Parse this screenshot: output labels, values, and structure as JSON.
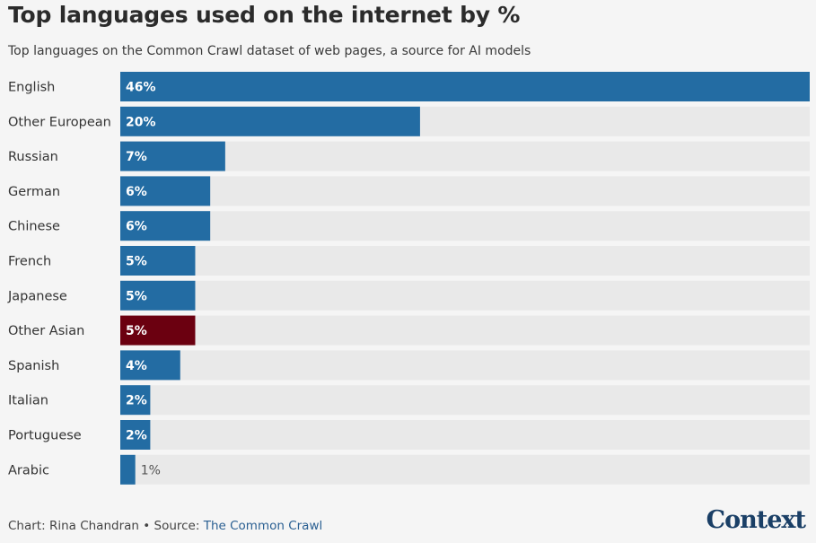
{
  "chart_data": {
    "type": "bar",
    "orientation": "horizontal",
    "title": "Top languages used on the internet by %",
    "subtitle": "Top languages on the Common Crawl dataset of web pages, a source for AI models",
    "categories": [
      "English",
      "Other European",
      "Russian",
      "German",
      "Chinese",
      "French",
      "Japanese",
      "Other Asian",
      "Spanish",
      "Italian",
      "Portuguese",
      "Arabic"
    ],
    "values": [
      46,
      20,
      7,
      6,
      6,
      5,
      5,
      5,
      4,
      2,
      2,
      1
    ],
    "value_labels": [
      "46%",
      "20%",
      "7%",
      "6%",
      "6%",
      "5%",
      "5%",
      "5%",
      "4%",
      "2%",
      "2%",
      "1%"
    ],
    "highlight": "Other Asian",
    "xlim": [
      0,
      46
    ],
    "colors": {
      "bar": "#236ca3",
      "highlight": "#6b0010",
      "track": "#e9e9e9"
    }
  },
  "footer": {
    "credit": "Chart: Rina Chandran • Source: ",
    "source": "The Common Crawl"
  },
  "brand": "Context"
}
